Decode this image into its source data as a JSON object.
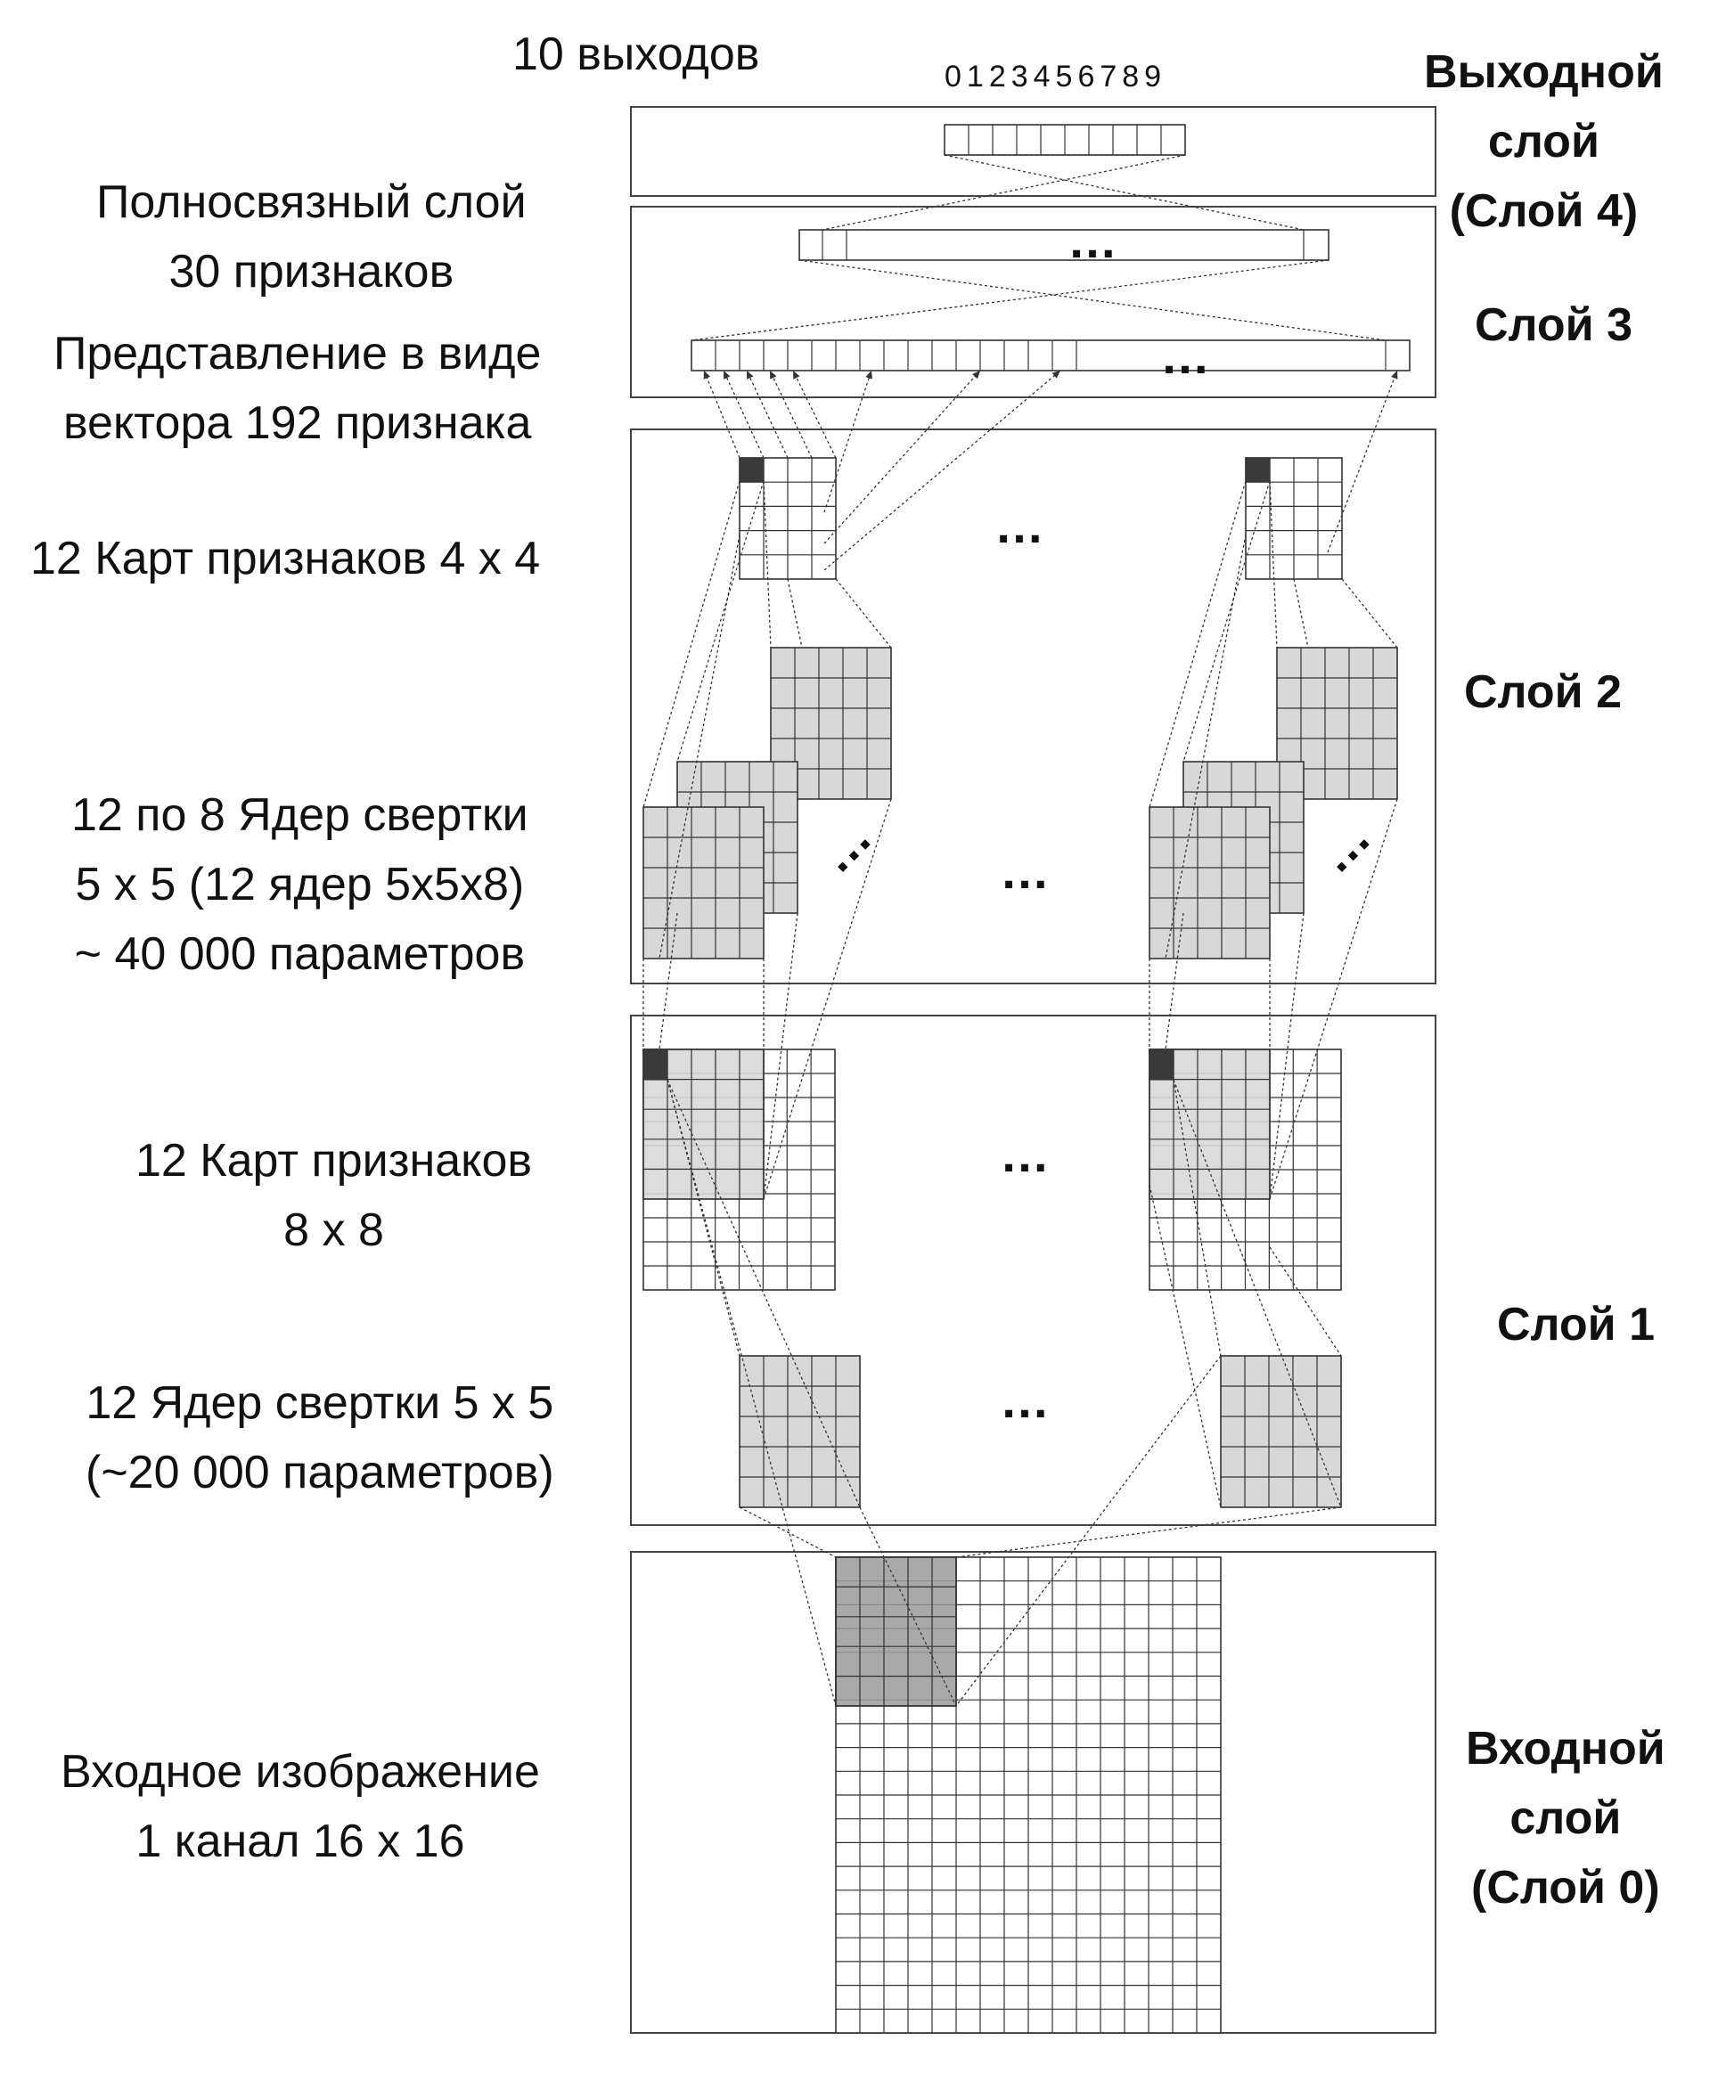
{
  "labels": {
    "outputs_count": "10 выходов",
    "digits": "0123456789",
    "fc_layer": "Полносвязный слой\n30 признаков",
    "vector_repr": "Представление в виде\nвектора 192 признака",
    "maps_4x4": "12 Карт признаков 4 x 4",
    "kernels_layer2": "12 по 8 Ядер свертки\n5 x 5 (12 ядер 5x5x8)\n~ 40 000 параметров",
    "maps_8x8": "12 Карт признаков\n8 x 8",
    "kernels_layer1": "12 Ядер свертки 5 x 5\n(~20 000 параметров)",
    "input_image": "Входное изображение\n1 канал 16 x 16"
  },
  "layers": {
    "output": "Выходной\nслой\n(Слой 4)",
    "layer3": "Слой 3",
    "layer2": "Слой 2",
    "layer1": "Слой 1",
    "input": "Входной\nслой\n(Слой 0)"
  },
  "ellipsis": "…",
  "colors": {
    "line": "#333333",
    "kernel_fill": "#d8d8d8",
    "receptive_fill": "#9a9a9a",
    "active_cell": "#3a3a3a"
  }
}
